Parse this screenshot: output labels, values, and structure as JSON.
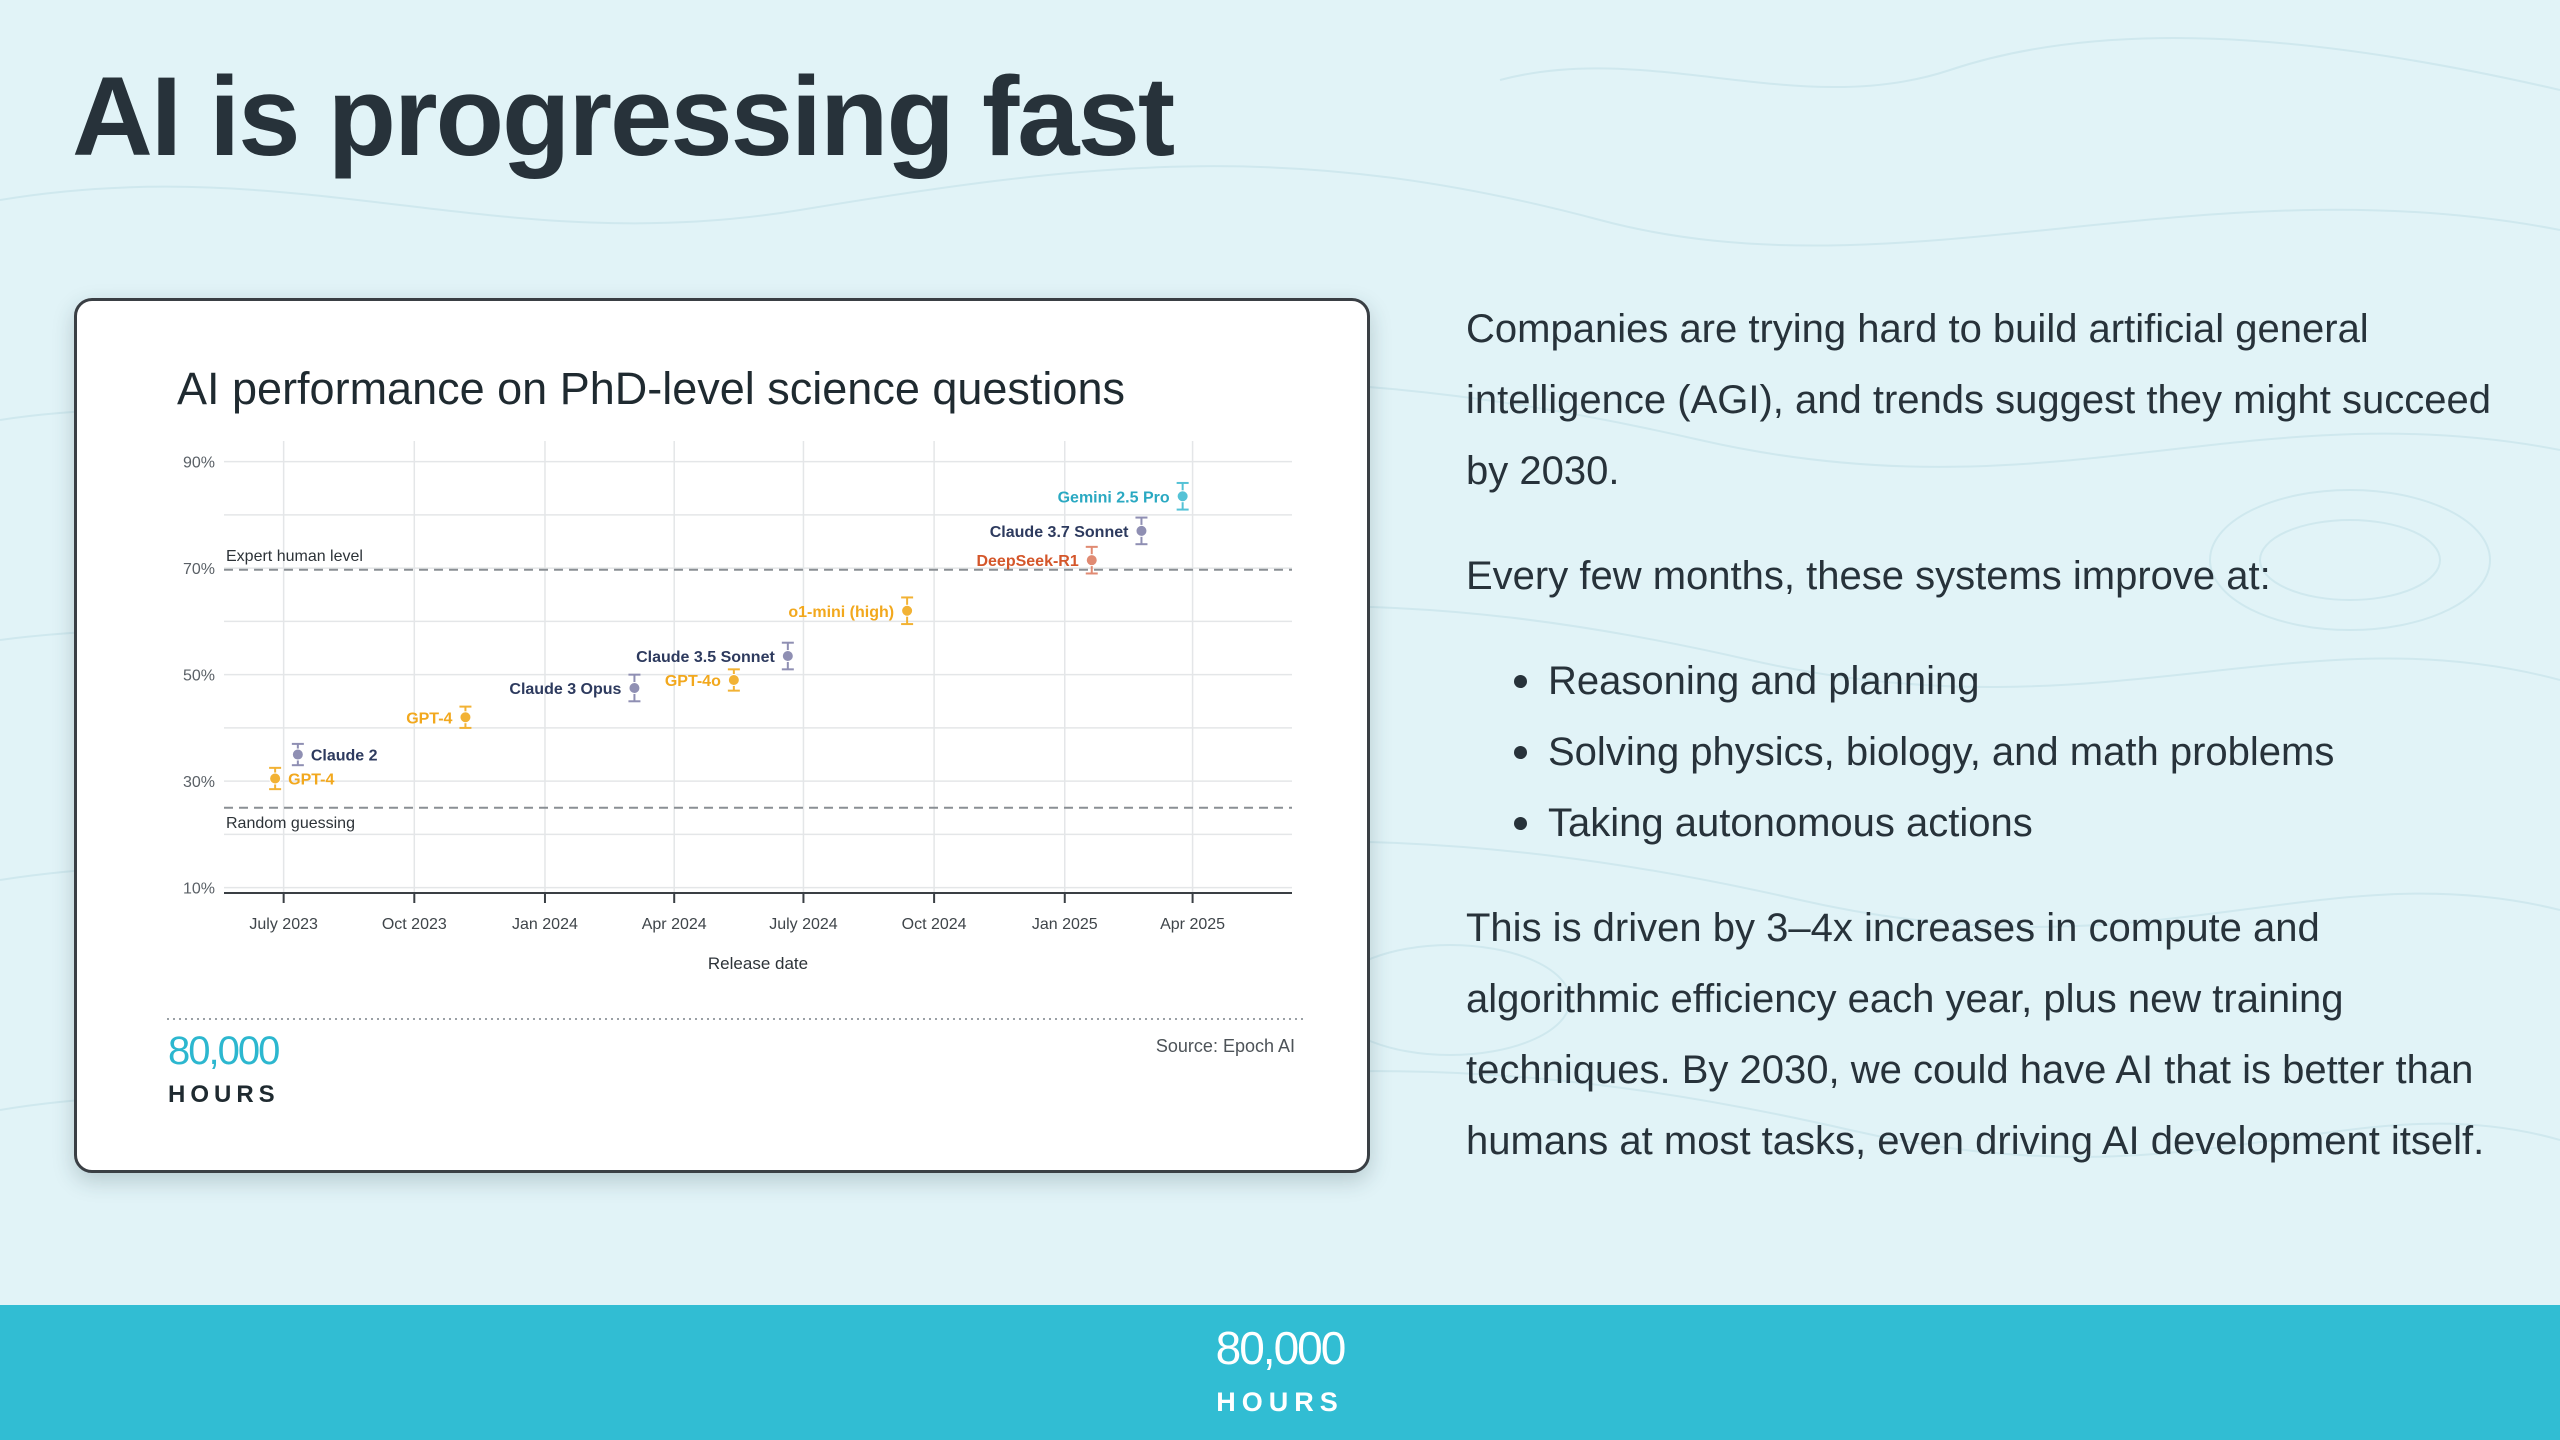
{
  "slide": {
    "title": "AI is progressing fast"
  },
  "chart_card": {
    "logo_number": "80,000",
    "logo_word": "HOURS",
    "source": "Source: Epoch AI"
  },
  "chart_data": {
    "type": "scatter",
    "title": "AI performance on PhD-level science questions",
    "xlabel": "Release date",
    "ylabel": "",
    "x_ticks": [
      "July 2023",
      "Oct 2023",
      "Jan 2024",
      "Apr 2024",
      "July 2024",
      "Oct 2024",
      "Jan 2025",
      "Apr 2025"
    ],
    "x_tick_dates": [
      "2023-07-01",
      "2023-10-01",
      "2024-01-01",
      "2024-04-01",
      "2024-07-01",
      "2024-10-01",
      "2025-01-01",
      "2025-04-01"
    ],
    "xlim": [
      "2023-05-20",
      "2025-06-10"
    ],
    "y_ticks": [
      "10%",
      "30%",
      "50%",
      "70%",
      "90%"
    ],
    "y_tick_values": [
      10,
      30,
      50,
      70,
      90
    ],
    "ylim": [
      9,
      92
    ],
    "grid": true,
    "reference_lines": [
      {
        "label": "Expert human level",
        "y": 69.7
      },
      {
        "label": "Random guessing",
        "y": 25
      }
    ],
    "points": [
      {
        "label": "GPT-4",
        "date": "2023-06-25",
        "y": 30.5,
        "err": 2,
        "color": "#f2b234",
        "label_color": "#f2a81d",
        "label_pos": "right"
      },
      {
        "label": "Claude 2",
        "date": "2023-07-11",
        "y": 35,
        "err": 2,
        "color": "#8f8fb3",
        "label_color": "#2d3a5e",
        "label_pos": "right"
      },
      {
        "label": "GPT-4",
        "date": "2023-11-06",
        "y": 42,
        "err": 2,
        "color": "#f2b234",
        "label_color": "#f2a81d",
        "label_pos": "left"
      },
      {
        "label": "Claude 3 Opus",
        "date": "2024-03-04",
        "y": 47.5,
        "err": 2.5,
        "color": "#8f8fb3",
        "label_color": "#2d3a5e",
        "label_pos": "left"
      },
      {
        "label": "GPT-4o",
        "date": "2024-05-13",
        "y": 49,
        "err": 2,
        "color": "#f2b234",
        "label_color": "#f2a81d",
        "label_pos": "left"
      },
      {
        "label": "Claude 3.5 Sonnet",
        "date": "2024-06-20",
        "y": 53.5,
        "err": 2.5,
        "color": "#8f8fb3",
        "label_color": "#2d3a5e",
        "label_pos": "left"
      },
      {
        "label": "o1-mini (high)",
        "date": "2024-09-12",
        "y": 62,
        "err": 2.5,
        "color": "#f2b234",
        "label_color": "#f2a81d",
        "label_pos": "left"
      },
      {
        "label": "DeepSeek-R1",
        "date": "2025-01-20",
        "y": 71.5,
        "err": 2.5,
        "color": "#e08a72",
        "label_color": "#d4562a",
        "label_pos": "left"
      },
      {
        "label": "Claude 3.7 Sonnet",
        "date": "2025-02-24",
        "y": 77,
        "err": 2.5,
        "color": "#8f8fb3",
        "label_color": "#2d3a5e",
        "label_pos": "left"
      },
      {
        "label": "Gemini 2.5 Pro",
        "date": "2025-03-25",
        "y": 83.5,
        "err": 2.5,
        "color": "#54c2d6",
        "label_color": "#2aa9c2",
        "label_pos": "left"
      }
    ]
  },
  "text": {
    "intro": "Companies are trying hard to build artificial general intelligence (AGI), and trends suggest they might succeed by 2030.",
    "improve_heading": "Every few months, these systems improve at:",
    "bullets": [
      "Reasoning and planning",
      "Solving physics, biology, and math problems",
      "Taking autonomous actions"
    ],
    "driven": "This is driven by 3–4x increases in compute and algorithmic efficiency each year, plus new training techniques. By 2030, we could have AI that is better than humans at most tasks, even driving AI development itself."
  },
  "footer": {
    "logo_number": "80,000",
    "logo_word": "HOURS"
  },
  "colors": {
    "background": "#e1f3f7",
    "footer": "#31bdd3",
    "brand_teal": "#2cb7cf",
    "text": "#27323a"
  }
}
